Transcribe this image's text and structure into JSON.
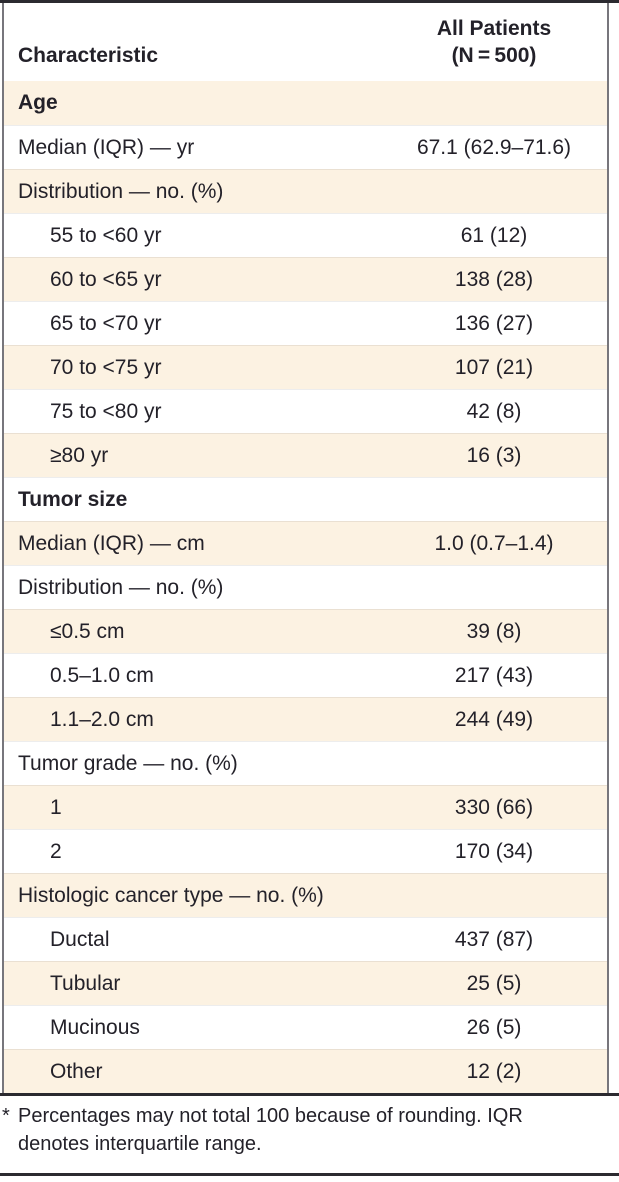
{
  "colors": {
    "stripe": "#FCF2E2",
    "text": "#232129",
    "rule_dark": "#2B2A30",
    "rule_side": "#77767C"
  },
  "table": {
    "header": {
      "characteristic": "Characteristic",
      "all_patients_line1": "All Patients",
      "all_patients_line2": "(N = 500)"
    },
    "rows": [
      {
        "label": "Age",
        "value": "",
        "bold": true,
        "indent": 0
      },
      {
        "label": "Median (IQR) — yr",
        "value": "67.1 (62.9–71.6)",
        "bold": false,
        "indent": 0
      },
      {
        "label": "Distribution — no. (%)",
        "value": "",
        "bold": false,
        "indent": 0
      },
      {
        "label": "55 to <60 yr",
        "value": "61 (12)",
        "bold": false,
        "indent": 1
      },
      {
        "label": "60 to <65 yr",
        "value": "138 (28)",
        "bold": false,
        "indent": 1
      },
      {
        "label": "65 to <70 yr",
        "value": "136 (27)",
        "bold": false,
        "indent": 1
      },
      {
        "label": "70 to <75 yr",
        "value": "107 (21)",
        "bold": false,
        "indent": 1
      },
      {
        "label": "75 to <80 yr",
        "value": "42 (8)",
        "bold": false,
        "indent": 1
      },
      {
        "label": "≥80 yr",
        "value": "16 (3)",
        "bold": false,
        "indent": 1
      },
      {
        "label": "Tumor size",
        "value": "",
        "bold": true,
        "indent": 0
      },
      {
        "label": "Median (IQR) — cm",
        "value": "1.0 (0.7–1.4)",
        "bold": false,
        "indent": 0
      },
      {
        "label": "Distribution — no. (%)",
        "value": "",
        "bold": false,
        "indent": 0
      },
      {
        "label": "≤0.5 cm",
        "value": "39 (8)",
        "bold": false,
        "indent": 1
      },
      {
        "label": "0.5–1.0 cm",
        "value": "217 (43)",
        "bold": false,
        "indent": 1
      },
      {
        "label": "1.1–2.0 cm",
        "value": "244 (49)",
        "bold": false,
        "indent": 1
      },
      {
        "label": "Tumor grade — no. (%)",
        "value": "",
        "bold": false,
        "indent": 0
      },
      {
        "label": "1",
        "value": "330 (66)",
        "bold": false,
        "indent": 1
      },
      {
        "label": "2",
        "value": "170 (34)",
        "bold": false,
        "indent": 1
      },
      {
        "label": "Histologic cancer type — no. (%)",
        "value": "",
        "bold": false,
        "indent": 0
      },
      {
        "label": "Ductal",
        "value": "437 (87)",
        "bold": false,
        "indent": 1
      },
      {
        "label": "Tubular",
        "value": "25 (5)",
        "bold": false,
        "indent": 1
      },
      {
        "label": "Mucinous",
        "value": "26 (5)",
        "bold": false,
        "indent": 1
      },
      {
        "label": "Other",
        "value": "12 (2)",
        "bold": false,
        "indent": 1
      }
    ],
    "footnote": {
      "marker": "*",
      "lines": [
        "Percentages may not total 100 because of rounding. IQR",
        "denotes interquartile range."
      ]
    }
  }
}
